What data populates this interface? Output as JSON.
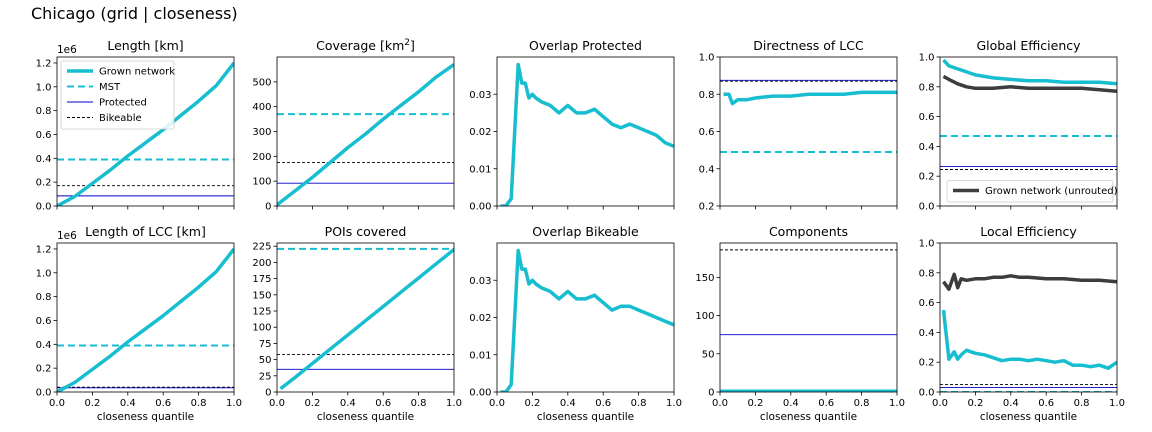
{
  "figure_title": "Chicago (grid | closeness)",
  "colors": {
    "grown": "#17becf",
    "mst": "#17becf",
    "protected": "#0000cc",
    "bikeable": "#000000",
    "unrouted": "#3d3d3d"
  },
  "chart_data": [
    {
      "id": "length",
      "type": "line",
      "title": "Length [km]",
      "xlabel": "",
      "ylabel": "",
      "xlim": [
        0,
        1
      ],
      "ylim": [
        0,
        1.25
      ],
      "yticks": [
        0,
        0.2,
        0.4,
        0.6,
        0.8,
        1.0,
        1.2
      ],
      "ytick_labels": [
        "0.0",
        "0.2",
        "0.4",
        "0.6",
        "0.8",
        "1.0",
        "1.2"
      ],
      "offset_text": "1e6",
      "legend": [
        "Grown network",
        "MST",
        "Protected",
        "Bikeable"
      ],
      "legend_position": "upper left",
      "series": [
        {
          "name": "Grown network",
          "role": "grown",
          "x": [
            0,
            0.1,
            0.2,
            0.3,
            0.4,
            0.5,
            0.6,
            0.7,
            0.8,
            0.9,
            1.0
          ],
          "y": [
            0.0,
            0.08,
            0.19,
            0.3,
            0.42,
            0.53,
            0.64,
            0.76,
            0.88,
            1.01,
            1.2
          ]
        }
      ],
      "hlines": [
        {
          "name": "MST",
          "y": 0.39
        },
        {
          "name": "Protected",
          "y": 0.085
        },
        {
          "name": "Bikeable",
          "y": 0.17
        }
      ]
    },
    {
      "id": "coverage",
      "type": "line",
      "title": "Coverage [km²]",
      "xlabel": "",
      "ylabel": "",
      "xlim": [
        0,
        1
      ],
      "ylim": [
        0,
        600
      ],
      "yticks": [
        0,
        100,
        200,
        300,
        400,
        500
      ],
      "ytick_labels": [
        "0",
        "100",
        "200",
        "300",
        "400",
        "500"
      ],
      "series": [
        {
          "name": "Grown network",
          "role": "grown",
          "x": [
            0,
            0.1,
            0.2,
            0.3,
            0.4,
            0.5,
            0.6,
            0.7,
            0.8,
            0.9,
            1.0
          ],
          "y": [
            5,
            60,
            115,
            175,
            235,
            290,
            350,
            405,
            460,
            520,
            570
          ]
        }
      ],
      "hlines": [
        {
          "name": "MST",
          "y": 370
        },
        {
          "name": "Protected",
          "y": 92
        },
        {
          "name": "Bikeable",
          "y": 175
        }
      ]
    },
    {
      "id": "overlap_protected",
      "type": "line",
      "title": "Overlap Protected",
      "xlabel": "",
      "ylabel": "",
      "xlim": [
        0,
        1
      ],
      "ylim": [
        0,
        0.04
      ],
      "yticks": [
        0,
        0.01,
        0.02,
        0.03
      ],
      "ytick_labels": [
        "0.00",
        "0.01",
        "0.02",
        "0.03"
      ],
      "series": [
        {
          "name": "Grown network",
          "role": "grown",
          "x": [
            0.02,
            0.05,
            0.08,
            0.1,
            0.12,
            0.14,
            0.16,
            0.18,
            0.2,
            0.22,
            0.25,
            0.3,
            0.35,
            0.4,
            0.45,
            0.5,
            0.55,
            0.6,
            0.65,
            0.7,
            0.75,
            0.8,
            0.85,
            0.9,
            0.95,
            1.0
          ],
          "y": [
            0.0,
            0.0,
            0.002,
            0.02,
            0.038,
            0.033,
            0.033,
            0.029,
            0.03,
            0.029,
            0.028,
            0.027,
            0.025,
            0.027,
            0.025,
            0.025,
            0.026,
            0.024,
            0.022,
            0.021,
            0.022,
            0.021,
            0.02,
            0.019,
            0.017,
            0.016
          ]
        }
      ],
      "hlines": []
    },
    {
      "id": "directness_lcc",
      "type": "line",
      "title": "Directness of LCC",
      "xlabel": "",
      "ylabel": "",
      "xlim": [
        0,
        1
      ],
      "ylim": [
        0.2,
        1.0
      ],
      "yticks": [
        0.2,
        0.4,
        0.6,
        0.8,
        1.0
      ],
      "ytick_labels": [
        "0.2",
        "0.4",
        "0.6",
        "0.8",
        "1.0"
      ],
      "series": [
        {
          "name": "Grown network",
          "role": "grown",
          "x": [
            0.02,
            0.05,
            0.07,
            0.1,
            0.15,
            0.2,
            0.3,
            0.4,
            0.5,
            0.6,
            0.7,
            0.8,
            0.9,
            1.0
          ],
          "y": [
            0.8,
            0.8,
            0.75,
            0.77,
            0.77,
            0.78,
            0.79,
            0.79,
            0.8,
            0.8,
            0.8,
            0.81,
            0.81,
            0.81
          ]
        }
      ],
      "hlines": [
        {
          "name": "MST",
          "y": 0.49
        },
        {
          "name": "Protected",
          "y": 0.875
        },
        {
          "name": "Bikeable",
          "y": 0.87
        }
      ]
    },
    {
      "id": "global_efficiency",
      "type": "line",
      "title": "Global Efficiency",
      "xlabel": "",
      "ylabel": "",
      "xlim": [
        0,
        1
      ],
      "ylim": [
        0,
        1.0
      ],
      "yticks": [
        0,
        0.2,
        0.4,
        0.6,
        0.8,
        1.0
      ],
      "ytick_labels": [
        "0.0",
        "0.2",
        "0.4",
        "0.6",
        "0.8",
        "1.0"
      ],
      "legend": [
        "Grown network (unrouted)"
      ],
      "legend_position": "lower right",
      "series": [
        {
          "name": "Grown network",
          "role": "grown",
          "x": [
            0.02,
            0.05,
            0.1,
            0.15,
            0.2,
            0.3,
            0.4,
            0.5,
            0.6,
            0.7,
            0.8,
            0.9,
            1.0
          ],
          "y": [
            0.98,
            0.94,
            0.92,
            0.9,
            0.88,
            0.86,
            0.85,
            0.84,
            0.84,
            0.83,
            0.83,
            0.83,
            0.82
          ]
        },
        {
          "name": "Grown network (unrouted)",
          "role": "unrouted",
          "x": [
            0.02,
            0.05,
            0.1,
            0.15,
            0.2,
            0.3,
            0.4,
            0.5,
            0.6,
            0.7,
            0.8,
            0.9,
            1.0
          ],
          "y": [
            0.87,
            0.85,
            0.82,
            0.8,
            0.79,
            0.79,
            0.8,
            0.79,
            0.79,
            0.79,
            0.79,
            0.78,
            0.77
          ]
        }
      ],
      "hlines": [
        {
          "name": "MST",
          "y": 0.47
        },
        {
          "name": "Protected",
          "y": 0.265
        },
        {
          "name": "Bikeable",
          "y": 0.245
        }
      ]
    },
    {
      "id": "length_lcc",
      "type": "line",
      "title": "Length of LCC [km]",
      "xlabel": "closeness quantile",
      "ylabel": "",
      "xlim": [
        0,
        1
      ],
      "ylim": [
        0,
        1.25
      ],
      "yticks": [
        0,
        0.2,
        0.4,
        0.6,
        0.8,
        1.0,
        1.2
      ],
      "ytick_labels": [
        "0.0",
        "0.2",
        "0.4",
        "0.6",
        "0.8",
        "1.0",
        "1.2"
      ],
      "offset_text": "1e6",
      "series": [
        {
          "name": "Grown network",
          "role": "grown",
          "x": [
            0,
            0.1,
            0.2,
            0.3,
            0.4,
            0.5,
            0.6,
            0.7,
            0.8,
            0.9,
            1.0
          ],
          "y": [
            0.0,
            0.08,
            0.19,
            0.3,
            0.42,
            0.53,
            0.64,
            0.76,
            0.88,
            1.01,
            1.2
          ]
        }
      ],
      "hlines": [
        {
          "name": "MST",
          "y": 0.39
        },
        {
          "name": "Protected",
          "y": 0.035
        },
        {
          "name": "Bikeable",
          "y": 0.04
        }
      ]
    },
    {
      "id": "pois_covered",
      "type": "line",
      "title": "POIs covered",
      "xlabel": "closeness quantile",
      "ylabel": "",
      "xlim": [
        0,
        1
      ],
      "ylim": [
        0,
        230
      ],
      "yticks": [
        0,
        25,
        50,
        75,
        100,
        125,
        150,
        175,
        200,
        225
      ],
      "ytick_labels": [
        "0",
        "25",
        "50",
        "75",
        "100",
        "125",
        "150",
        "175",
        "200",
        "225"
      ],
      "series": [
        {
          "name": "Grown network",
          "role": "grown",
          "x": [
            0.02,
            0.1,
            0.2,
            0.3,
            0.4,
            0.5,
            0.6,
            0.7,
            0.8,
            0.9,
            1.0
          ],
          "y": [
            5,
            22,
            44,
            66,
            88,
            110,
            132,
            154,
            176,
            198,
            220
          ]
        }
      ],
      "hlines": [
        {
          "name": "MST",
          "y": 221
        },
        {
          "name": "Protected",
          "y": 35
        },
        {
          "name": "Bikeable",
          "y": 58
        }
      ]
    },
    {
      "id": "overlap_bikeable",
      "type": "line",
      "title": "Overlap Bikeable",
      "xlabel": "closeness quantile",
      "ylabel": "",
      "xlim": [
        0,
        1
      ],
      "ylim": [
        0,
        0.04
      ],
      "yticks": [
        0,
        0.01,
        0.02,
        0.03
      ],
      "ytick_labels": [
        "0.00",
        "0.01",
        "0.02",
        "0.03"
      ],
      "series": [
        {
          "name": "Grown network",
          "role": "grown",
          "x": [
            0.02,
            0.05,
            0.08,
            0.1,
            0.12,
            0.14,
            0.16,
            0.18,
            0.2,
            0.22,
            0.25,
            0.3,
            0.35,
            0.4,
            0.45,
            0.5,
            0.55,
            0.6,
            0.65,
            0.7,
            0.75,
            0.8,
            0.85,
            0.9,
            0.95,
            1.0
          ],
          "y": [
            0.0,
            0.0,
            0.002,
            0.02,
            0.038,
            0.033,
            0.033,
            0.029,
            0.03,
            0.029,
            0.028,
            0.027,
            0.025,
            0.027,
            0.025,
            0.025,
            0.026,
            0.024,
            0.022,
            0.023,
            0.023,
            0.022,
            0.021,
            0.02,
            0.019,
            0.018
          ]
        }
      ],
      "hlines": []
    },
    {
      "id": "components",
      "type": "line",
      "title": "Components",
      "xlabel": "closeness quantile",
      "ylabel": "",
      "xlim": [
        0,
        1
      ],
      "ylim": [
        0,
        195
      ],
      "yticks": [
        0,
        50,
        100,
        150
      ],
      "ytick_labels": [
        "0",
        "50",
        "100",
        "150"
      ],
      "series": [
        {
          "name": "Grown network",
          "role": "grown",
          "x": [
            0,
            0.5,
            1.0
          ],
          "y": [
            1,
            1,
            1
          ]
        }
      ],
      "hlines": [
        {
          "name": "MST",
          "y": 1
        },
        {
          "name": "Protected",
          "y": 75
        },
        {
          "name": "Bikeable",
          "y": 186
        }
      ]
    },
    {
      "id": "local_efficiency",
      "type": "line",
      "title": "Local Efficiency",
      "xlabel": "closeness quantile",
      "ylabel": "",
      "xlim": [
        0,
        1
      ],
      "ylim": [
        0,
        1.0
      ],
      "yticks": [
        0,
        0.2,
        0.4,
        0.6,
        0.8,
        1.0
      ],
      "ytick_labels": [
        "0.0",
        "0.2",
        "0.4",
        "0.6",
        "0.8",
        "1.0"
      ],
      "series": [
        {
          "name": "Grown network",
          "role": "grown",
          "x": [
            0.02,
            0.05,
            0.08,
            0.1,
            0.12,
            0.15,
            0.2,
            0.25,
            0.3,
            0.35,
            0.4,
            0.45,
            0.5,
            0.55,
            0.6,
            0.65,
            0.7,
            0.75,
            0.8,
            0.85,
            0.9,
            0.95,
            1.0
          ],
          "y": [
            0.55,
            0.22,
            0.27,
            0.22,
            0.25,
            0.28,
            0.26,
            0.25,
            0.23,
            0.21,
            0.22,
            0.22,
            0.21,
            0.22,
            0.21,
            0.2,
            0.21,
            0.18,
            0.18,
            0.17,
            0.18,
            0.16,
            0.2
          ]
        },
        {
          "name": "Grown network (unrouted)",
          "role": "unrouted",
          "x": [
            0.02,
            0.05,
            0.08,
            0.1,
            0.12,
            0.15,
            0.2,
            0.25,
            0.3,
            0.35,
            0.4,
            0.45,
            0.5,
            0.6,
            0.7,
            0.8,
            0.9,
            1.0
          ],
          "y": [
            0.74,
            0.69,
            0.79,
            0.7,
            0.76,
            0.75,
            0.76,
            0.76,
            0.77,
            0.77,
            0.78,
            0.77,
            0.77,
            0.76,
            0.76,
            0.75,
            0.75,
            0.74
          ]
        }
      ],
      "hlines": [
        {
          "name": "MST",
          "y": 0.0
        },
        {
          "name": "Protected",
          "y": 0.03
        },
        {
          "name": "Bikeable",
          "y": 0.05
        }
      ]
    }
  ]
}
